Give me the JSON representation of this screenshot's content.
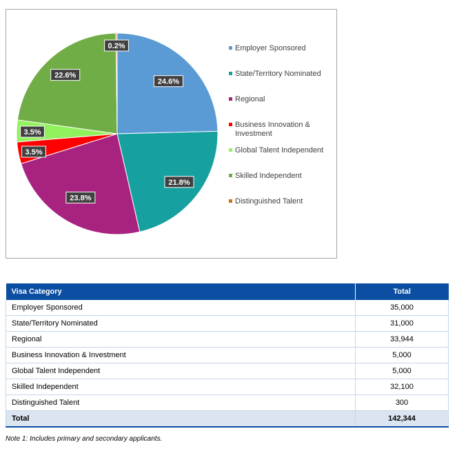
{
  "chart_data": {
    "type": "pie",
    "slices": [
      {
        "label": "Employer Sponsored",
        "percent": 24.6,
        "color": "#5b9bd5"
      },
      {
        "label": "State/Territory Nominated",
        "percent": 21.8,
        "color": "#17a0a0"
      },
      {
        "label": "Regional",
        "percent": 23.8,
        "color": "#a8237f"
      },
      {
        "label": "Business Innovation & Investment",
        "percent": 3.5,
        "color": "#ff0000"
      },
      {
        "label": "Global Talent Independent",
        "percent": 3.5,
        "color": "#92f25d"
      },
      {
        "label": "Skilled Independent",
        "percent": 22.6,
        "color": "#70ad47"
      },
      {
        "label": "Distinguished Talent",
        "percent": 0.2,
        "color": "#c8741a"
      }
    ],
    "data_labels": [
      "24.6%",
      "21.8%",
      "23.8%",
      "3.5%",
      "3.5%",
      "22.6%",
      "0.2%"
    ],
    "legend_position": "right"
  },
  "table": {
    "headers": {
      "category": "Visa Category",
      "total": "Total"
    },
    "rows": [
      {
        "category": "Employer Sponsored",
        "total": "35,000"
      },
      {
        "category": "State/Territory Nominated",
        "total": "31,000"
      },
      {
        "category": "Regional",
        "total": "33,944"
      },
      {
        "category": "Business Innovation & Investment",
        "total": "5,000"
      },
      {
        "category": "Global Talent Independent",
        "total": "5,000"
      },
      {
        "category": "Skilled Independent",
        "total": "32,100"
      },
      {
        "category": "Distinguished Talent",
        "total": "300"
      }
    ],
    "total_row": {
      "category": "Total",
      "total": "142,344"
    }
  },
  "note": "Note 1: Includes primary and secondary applicants."
}
